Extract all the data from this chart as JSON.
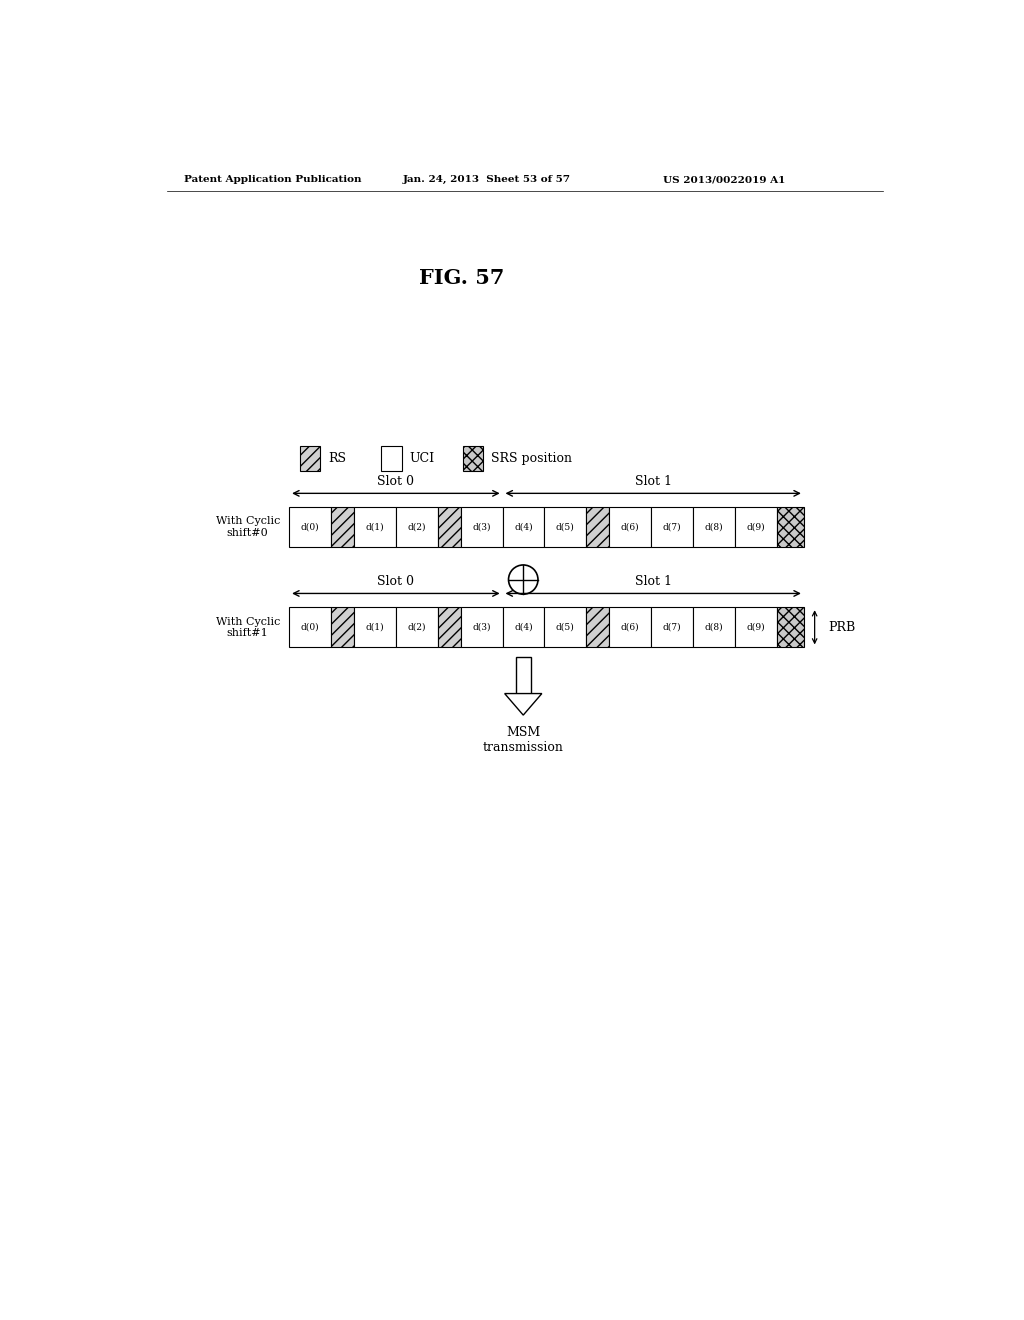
{
  "title": "FIG. 57",
  "header_left": "Patent Application Publication",
  "header_mid": "Jan. 24, 2013  Sheet 53 of 57",
  "header_right": "US 2013/0022019 A1",
  "legend_items": [
    "RS",
    "UCI",
    "SRS position"
  ],
  "row1_label": "With Cyclic\nshift#0",
  "row2_label": "With Cyclic\nshift#1",
  "slot0_label": "Slot 0",
  "slot1_label": "Slot 1",
  "prb_label": "PRB",
  "msm_label": "MSM\ntransmission",
  "bg_color": "#ffffff"
}
